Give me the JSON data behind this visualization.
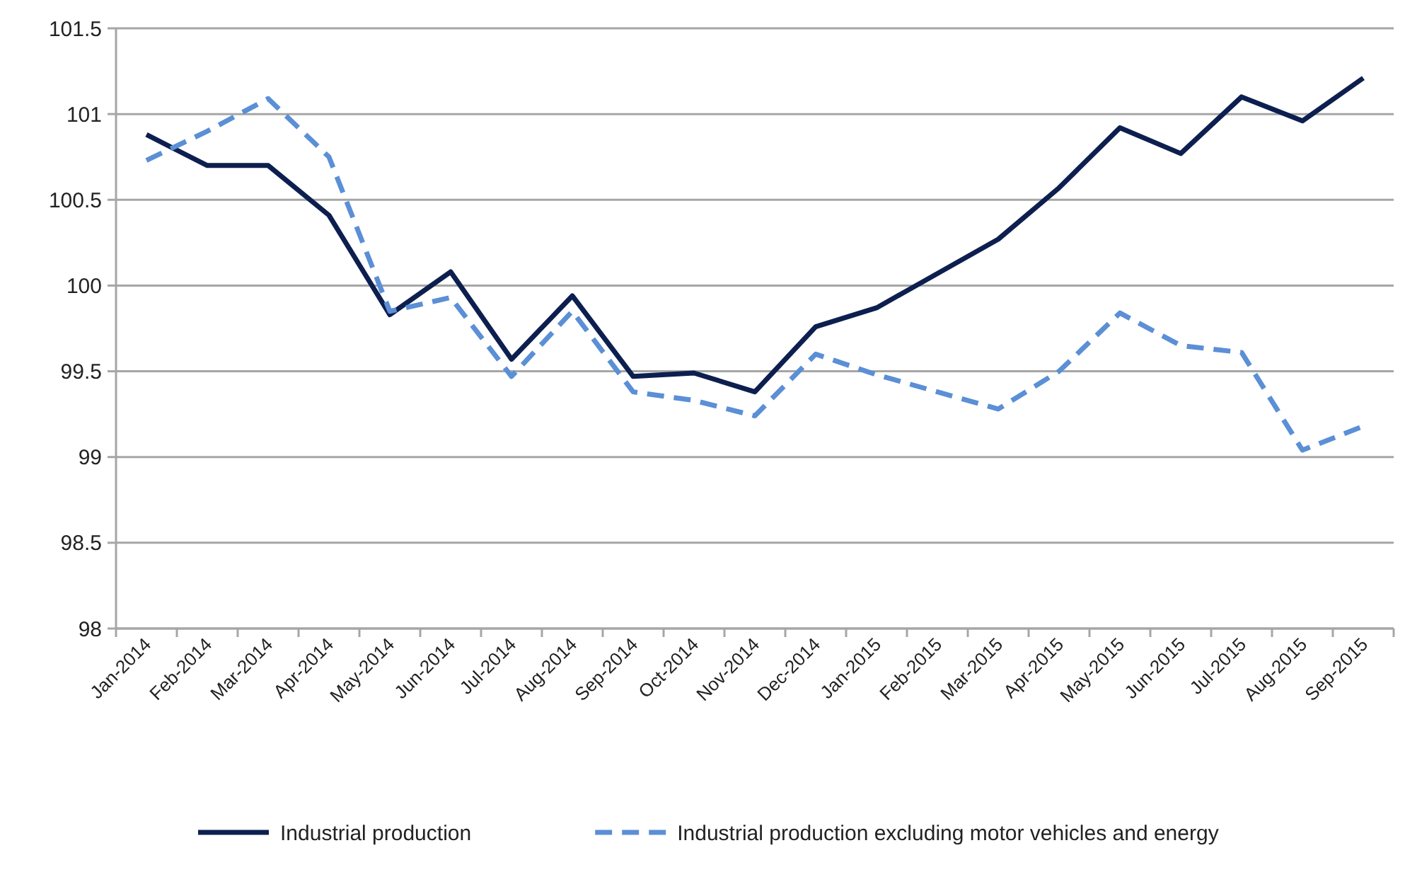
{
  "chart_data": {
    "type": "line",
    "categories": [
      "Jan-2014",
      "Feb-2014",
      "Mar-2014",
      "Apr-2014",
      "May-2014",
      "Jun-2014",
      "Jul-2014",
      "Aug-2014",
      "Sep-2014",
      "Oct-2014",
      "Nov-2014",
      "Dec-2014",
      "Jan-2015",
      "Feb-2015",
      "Mar-2015",
      "Apr-2015",
      "May-2015",
      "Jun-2015",
      "Jul-2015",
      "Aug-2015",
      "Sep-2015"
    ],
    "series": [
      {
        "name": "Industrial production",
        "color": "#0d1f4f",
        "line_style": "solid",
        "values": [
          100.88,
          100.7,
          100.7,
          100.41,
          99.83,
          100.08,
          99.57,
          99.94,
          99.47,
          99.49,
          99.38,
          99.76,
          99.87,
          100.07,
          100.27,
          100.57,
          100.92,
          100.77,
          101.1,
          100.96,
          101.21
        ]
      },
      {
        "name": "Industrial production excluding motor vehicles and energy",
        "color": "#5b8fd6",
        "line_style": "dashed",
        "values": [
          100.73,
          100.9,
          101.09,
          100.75,
          99.85,
          99.93,
          99.47,
          99.85,
          99.38,
          99.33,
          99.24,
          99.6,
          99.48,
          99.38,
          99.28,
          99.5,
          99.84,
          99.65,
          99.61,
          99.04,
          99.18
        ]
      }
    ],
    "ylim": [
      98,
      101.5
    ],
    "yticks": [
      98,
      98.5,
      99,
      99.5,
      100,
      100.5,
      101,
      101.5
    ],
    "grid": "y",
    "legend": "bottom",
    "marker": "none"
  }
}
